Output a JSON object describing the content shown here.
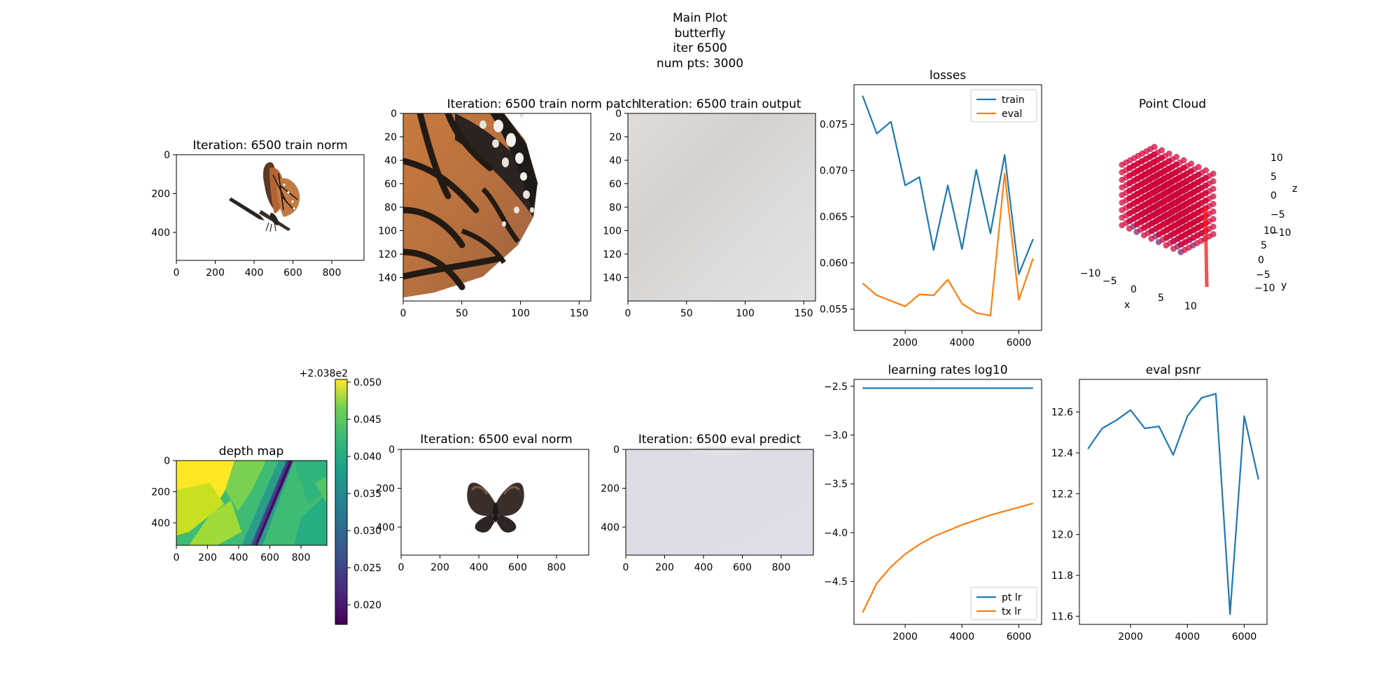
{
  "suptitle": {
    "line1": "Main Plot",
    "line2": "butterfly",
    "line3": "iter 6500",
    "line4": "num pts: 3000"
  },
  "colors": {
    "train": "#1f77b4",
    "eval": "#ff7f0e",
    "pt_lr": "#1f77b4",
    "tx_lr": "#ff7f0e",
    "psnr": "#1f77b4",
    "cloud_main": "#d6003a",
    "cloud_blue": "#2a2ad8"
  },
  "panels": {
    "train_norm": {
      "title": "Iteration: 6500 train norm",
      "xticks": [
        "0",
        "200",
        "400",
        "600",
        "800"
      ],
      "yticks": [
        "0",
        "200",
        "400"
      ],
      "image": "butterfly-side-photo"
    },
    "train_patch": {
      "title": "Iteration: 6500 train norm patch",
      "xticks": [
        "0",
        "50",
        "100",
        "150"
      ],
      "yticks": [
        "0",
        "20",
        "40",
        "60",
        "80",
        "100",
        "120",
        "140"
      ],
      "image": "wing-closeup-photo"
    },
    "train_output": {
      "title": "Iteration: 6500 train output",
      "xticks": [
        "0",
        "50",
        "100",
        "150"
      ],
      "yticks": [
        "0",
        "20",
        "40",
        "60",
        "80",
        "100",
        "120",
        "140"
      ],
      "image": "blurred-gray-output"
    },
    "depth_map": {
      "title": "depth map",
      "xticks": [
        "0",
        "200",
        "400",
        "600",
        "800"
      ],
      "yticks": [
        "0",
        "200",
        "400"
      ],
      "colorbar_ticks": [
        "0.050",
        "0.045",
        "0.040",
        "0.035",
        "0.030",
        "0.025",
        "0.020"
      ],
      "colorbar_offset": "+2.038e2",
      "colormap": "viridis"
    },
    "eval_norm": {
      "title": "Iteration: 6500 eval norm",
      "xticks": [
        "0",
        "200",
        "400",
        "600",
        "800"
      ],
      "yticks": [
        "0",
        "200",
        "400"
      ],
      "image": "butterfly-front-photo"
    },
    "eval_predict": {
      "title": "Iteration: 6500 eval predict",
      "xticks": [
        "0",
        "200",
        "400",
        "600",
        "800"
      ],
      "yticks": [
        "0",
        "200",
        "400"
      ],
      "image": "blurred-lavender-output"
    },
    "point_cloud": {
      "title": "Point Cloud",
      "xlabel": "x",
      "ylabel": "y",
      "zlabel": "z",
      "xticks": [
        "−10",
        "−5",
        "0",
        "5",
        "10"
      ],
      "yticks": [
        "−10",
        "−5",
        "0",
        "5",
        "10"
      ],
      "zticks": [
        "10",
        "5",
        "0",
        "−5",
        "−10"
      ]
    }
  },
  "chart_data": [
    {
      "id": "losses",
      "type": "line",
      "title": "losses",
      "xlim": [
        200,
        6800
      ],
      "ylim": [
        0.0527,
        0.0793
      ],
      "xticks": [
        2000,
        4000,
        6000
      ],
      "yticks": [
        0.055,
        0.06,
        0.065,
        0.07,
        0.075
      ],
      "ytick_labels": [
        "0.055",
        "0.060",
        "0.065",
        "0.070",
        "0.075"
      ],
      "legend": "top-right",
      "x": [
        500,
        1000,
        1500,
        2000,
        2500,
        3000,
        3500,
        4000,
        4500,
        5000,
        5500,
        6000,
        6500
      ],
      "series": [
        {
          "name": "train",
          "values": [
            0.0781,
            0.074,
            0.0753,
            0.0684,
            0.0693,
            0.0614,
            0.0684,
            0.0615,
            0.0701,
            0.0632,
            0.0717,
            0.0588,
            0.0626
          ]
        },
        {
          "name": "eval",
          "values": [
            0.0578,
            0.0565,
            0.0559,
            0.0553,
            0.0566,
            0.0565,
            0.0582,
            0.0556,
            0.0546,
            0.0543,
            0.0697,
            0.056,
            0.0605
          ]
        }
      ]
    },
    {
      "id": "learning_rates",
      "type": "line",
      "title": "learning rates log10",
      "xlim": [
        200,
        6800
      ],
      "ylim": [
        -4.94,
        -2.43
      ],
      "xticks": [
        2000,
        4000,
        6000
      ],
      "yticks": [
        -2.5,
        -3.0,
        -3.5,
        -4.0,
        -4.5
      ],
      "ytick_labels": [
        "−2.5",
        "−3.0",
        "−3.5",
        "−4.0",
        "−4.5"
      ],
      "legend": "bottom-right",
      "x": [
        500,
        1000,
        1500,
        2000,
        2500,
        3000,
        3500,
        4000,
        4500,
        5000,
        5500,
        6000,
        6500
      ],
      "series": [
        {
          "name": "pt lr",
          "values": [
            -2.52,
            -2.52,
            -2.52,
            -2.52,
            -2.52,
            -2.52,
            -2.52,
            -2.52,
            -2.52,
            -2.52,
            -2.52,
            -2.52,
            -2.52
          ]
        },
        {
          "name": "tx lr",
          "values": [
            -4.82,
            -4.52,
            -4.35,
            -4.22,
            -4.12,
            -4.04,
            -3.98,
            -3.92,
            -3.87,
            -3.82,
            -3.78,
            -3.74,
            -3.7
          ]
        }
      ]
    },
    {
      "id": "eval_psnr",
      "type": "line",
      "title": "eval psnr",
      "xlim": [
        200,
        6800
      ],
      "ylim": [
        11.56,
        12.76
      ],
      "xticks": [
        2000,
        4000,
        6000
      ],
      "yticks": [
        11.6,
        11.8,
        12.0,
        12.2,
        12.4,
        12.6
      ],
      "ytick_labels": [
        "11.6",
        "11.8",
        "12.0",
        "12.2",
        "12.4",
        "12.6"
      ],
      "legend": "none",
      "x": [
        500,
        1000,
        1500,
        2000,
        2500,
        3000,
        3500,
        4000,
        4500,
        5000,
        5500,
        6000,
        6500
      ],
      "series": [
        {
          "name": "",
          "values": [
            12.42,
            12.52,
            12.56,
            12.61,
            12.52,
            12.53,
            12.39,
            12.58,
            12.67,
            12.69,
            11.61,
            12.58,
            12.27
          ]
        }
      ]
    }
  ]
}
